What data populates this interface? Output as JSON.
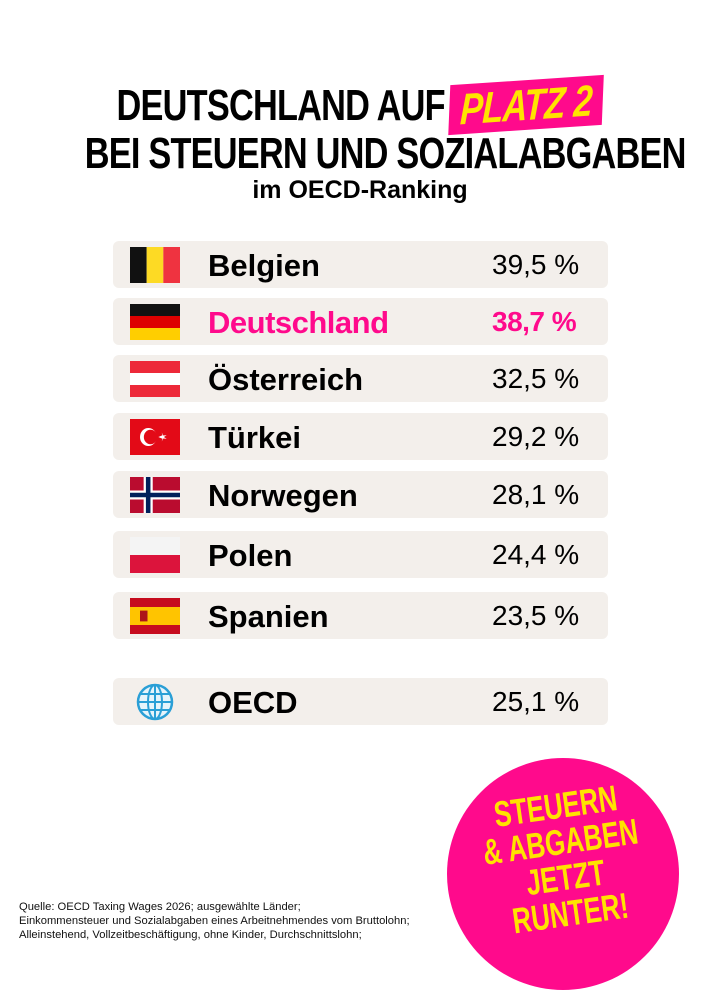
{
  "header": {
    "line1": "DEUTSCHLAND AUF",
    "highlight": "PLATZ 2",
    "line2": "BEI STEUERN UND SOZIALABGABEN",
    "subtitle": "im OECD-Ranking"
  },
  "accent_color": "#ff0a8c",
  "highlight_text_color": "#ffe300",
  "ranking": [
    {
      "country": "Belgien",
      "value": "39,5 %",
      "flag": "belgium-flag"
    },
    {
      "country": "Deutschland",
      "value": "38,7 %",
      "flag": "germany-flag",
      "highlighted": true
    },
    {
      "country": "Österreich",
      "value": "32,5 %",
      "flag": "austria-flag"
    },
    {
      "country": "Türkei",
      "value": "29,2 %",
      "flag": "turkey-flag"
    },
    {
      "country": "Norwegen",
      "value": "28,1 %",
      "flag": "norway-flag"
    },
    {
      "country": "Polen",
      "value": "24,4 %",
      "flag": "poland-flag"
    },
    {
      "country": "Spanien",
      "value": "23,5 %",
      "flag": "spain-flag"
    }
  ],
  "oecd": {
    "country": "OECD",
    "value": "25,1 %",
    "icon": "globe-icon"
  },
  "source": [
    "Quelle: OECD Taxing Wages 2026; ausgewählte Länder;",
    "Einkommensteuer und Sozialabgaben eines Arbeitnehmendes vom Bruttolohn;",
    "Alleinstehend, Vollzeitbeschäftigung, ohne Kinder, Durchschnittslohn;"
  ],
  "badge": [
    "STEUERN",
    "& ABGABEN",
    "JETZT",
    "RUNTER!"
  ]
}
